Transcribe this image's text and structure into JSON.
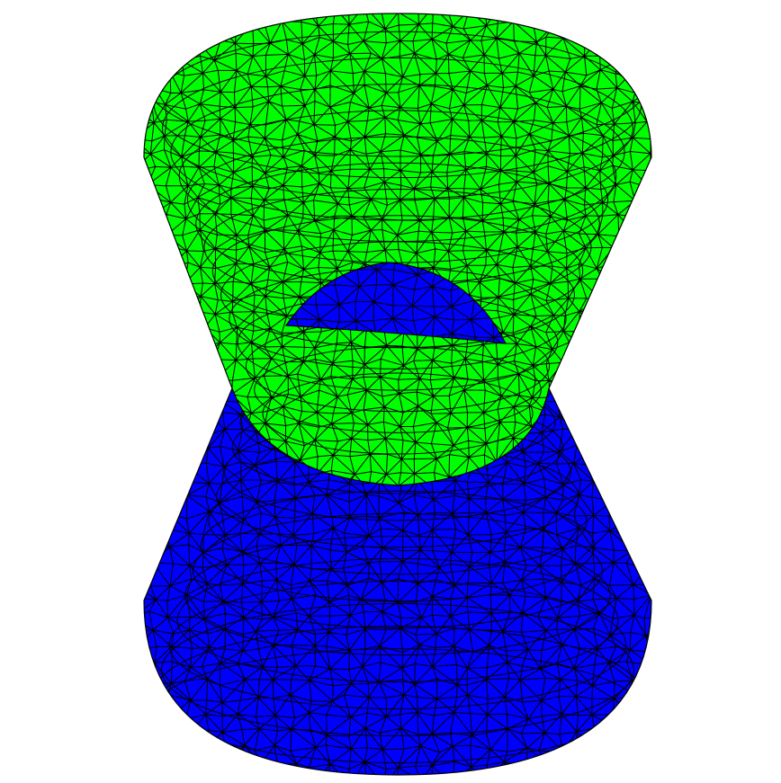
{
  "scene": {
    "background_color": "#ffffff",
    "objects": [
      {
        "name": "upper-cone-surface",
        "fill_color": "#00ff00",
        "wire_color": "#000000"
      },
      {
        "name": "lower-cone-surface",
        "fill_color": "#0000ff",
        "wire_color": "#000000"
      }
    ]
  }
}
